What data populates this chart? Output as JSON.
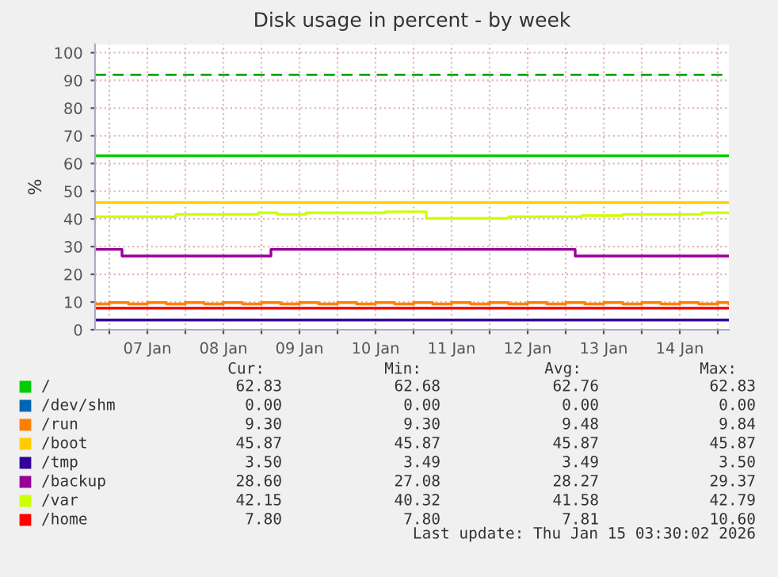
{
  "chart_data": {
    "type": "step",
    "title": "Disk usage in percent - by week",
    "ylabel": "%",
    "xlim": [
      "2026-01-06T19:30",
      "2026-01-15T03:30"
    ],
    "xticks": [
      {
        "value": "2026-01-07T00:00",
        "label": null
      },
      {
        "value": "2026-01-07T12:00",
        "label": "07 Jan"
      },
      {
        "value": "2026-01-08T00:00",
        "label": null
      },
      {
        "value": "2026-01-08T12:00",
        "label": "08 Jan"
      },
      {
        "value": "2026-01-09T00:00",
        "label": null
      },
      {
        "value": "2026-01-09T12:00",
        "label": "09 Jan"
      },
      {
        "value": "2026-01-10T00:00",
        "label": null
      },
      {
        "value": "2026-01-10T12:00",
        "label": "10 Jan"
      },
      {
        "value": "2026-01-11T00:00",
        "label": null
      },
      {
        "value": "2026-01-11T12:00",
        "label": "11 Jan"
      },
      {
        "value": "2026-01-12T00:00",
        "label": null
      },
      {
        "value": "2026-01-12T12:00",
        "label": "12 Jan"
      },
      {
        "value": "2026-01-13T00:00",
        "label": null
      },
      {
        "value": "2026-01-13T12:00",
        "label": "13 Jan"
      },
      {
        "value": "2026-01-14T00:00",
        "label": null
      },
      {
        "value": "2026-01-14T12:00",
        "label": "14 Jan"
      },
      {
        "value": "2026-01-15T00:00",
        "label": null
      }
    ],
    "ylim": [
      0,
      103
    ],
    "yticks": [
      0,
      10,
      20,
      30,
      40,
      50,
      60,
      70,
      80,
      90,
      100
    ],
    "grid": true,
    "legend": "bottom",
    "marker": "none",
    "line_style": "solid",
    "ref_lines": [
      {
        "axis": "y",
        "value": 92,
        "color": "#00aa00",
        "line_style": "dashed"
      }
    ],
    "series": [
      {
        "name": "/",
        "color": "#00cc00",
        "x": [
          "2026-01-06T19:30",
          "2026-01-15T03:30"
        ],
        "values": [
          62.8,
          62.8
        ]
      },
      {
        "name": "/dev/shm",
        "color": "#0066b3",
        "values": [
          null,
          null
        ]
      },
      {
        "name": "/run",
        "color": "#ff8000",
        "x": [
          "2026-01-06T19:30",
          "2026-01-07T00:00",
          "2026-01-07T06:00",
          "2026-01-07T12:00",
          "2026-01-07T18:00",
          "2026-01-08T00:00",
          "2026-01-08T06:00",
          "2026-01-08T12:00",
          "2026-01-08T18:00",
          "2026-01-09T00:00",
          "2026-01-09T06:00",
          "2026-01-09T12:00",
          "2026-01-09T18:00",
          "2026-01-10T00:00",
          "2026-01-10T06:00",
          "2026-01-10T12:00",
          "2026-01-10T18:00",
          "2026-01-11T00:00",
          "2026-01-11T06:00",
          "2026-01-11T12:00",
          "2026-01-11T18:00",
          "2026-01-12T00:00",
          "2026-01-12T06:00",
          "2026-01-12T12:00",
          "2026-01-12T18:00",
          "2026-01-13T00:00",
          "2026-01-13T06:00",
          "2026-01-13T12:00",
          "2026-01-13T18:00",
          "2026-01-14T00:00",
          "2026-01-14T06:00",
          "2026-01-14T12:00",
          "2026-01-14T18:00",
          "2026-01-15T00:00",
          "2026-01-15T03:30"
        ],
        "values": [
          9.3,
          9.8,
          9.3,
          9.8,
          9.3,
          9.8,
          9.3,
          9.8,
          9.3,
          9.8,
          9.3,
          9.8,
          9.3,
          9.8,
          9.3,
          9.8,
          9.3,
          9.8,
          9.3,
          9.8,
          9.3,
          9.8,
          9.3,
          9.8,
          9.3,
          9.8,
          9.3,
          9.8,
          9.3,
          9.8,
          9.3,
          9.8,
          9.3,
          9.8,
          9.3
        ]
      },
      {
        "name": "/boot",
        "color": "#ffcc00",
        "x": [
          "2026-01-06T19:30",
          "2026-01-15T03:30"
        ],
        "values": [
          45.9,
          45.9
        ]
      },
      {
        "name": "/tmp",
        "color": "#330099",
        "x": [
          "2026-01-06T19:30",
          "2026-01-15T03:30"
        ],
        "values": [
          3.5,
          3.5
        ]
      },
      {
        "name": "/backup",
        "color": "#990099",
        "x": [
          "2026-01-06T19:30",
          "2026-01-07T04:00",
          "2026-01-09T03:00",
          "2026-01-13T03:00",
          "2026-01-15T03:30"
        ],
        "values": [
          29,
          26.6,
          29,
          26.6,
          26.6
        ]
      },
      {
        "name": "/var",
        "color": "#ccff00",
        "x": [
          "2026-01-06T19:30",
          "2026-01-07T21:00",
          "2026-01-08T23:00",
          "2026-01-09T05:00",
          "2026-01-09T14:00",
          "2026-01-10T15:00",
          "2026-01-11T04:00",
          "2026-01-12T06:00",
          "2026-01-13T05:00",
          "2026-01-13T18:00",
          "2026-01-14T19:00",
          "2026-01-15T03:30"
        ],
        "values": [
          40.8,
          41.6,
          42.2,
          41.6,
          42.2,
          42.6,
          40.2,
          40.8,
          41.2,
          41.6,
          42.2,
          42.2
        ]
      },
      {
        "name": "/home",
        "color": "#ff0000",
        "x": [
          "2026-01-06T19:30",
          "2026-01-15T03:30"
        ],
        "values": [
          7.8,
          7.8
        ]
      }
    ],
    "annotations": [
      "Cur:",
      "Min:",
      "Avg:",
      "Max:",
      "62.83",
      "62.68",
      "62.76",
      "62.83",
      "0.00",
      "0.00",
      "0.00",
      "0.00",
      "9.30",
      "9.30",
      "9.48",
      "9.84",
      "45.87",
      "45.87",
      "45.87",
      "45.87",
      "3.50",
      "3.49",
      "3.49",
      "3.50",
      "28.60",
      "27.08",
      "28.27",
      "29.37",
      "42.15",
      "40.32",
      "41.58",
      "42.79",
      "7.80",
      "7.80",
      "7.81",
      "10.60",
      "Last update: Thu Jan 15 03:30:02 2026"
    ]
  }
}
